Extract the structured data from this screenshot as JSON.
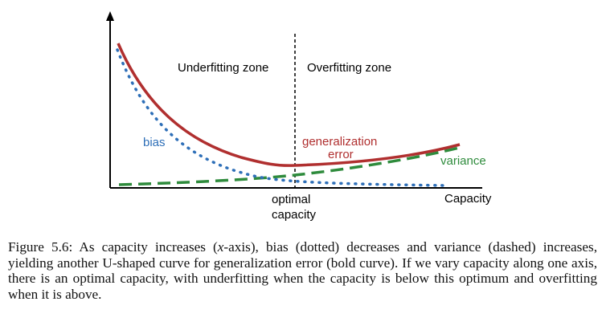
{
  "figure": {
    "labels": {
      "underfitting_zone": "Underfitting zone",
      "overfitting_zone": "Overfitting zone",
      "bias": "bias",
      "generalization_line1": "generalization",
      "generalization_line2": "error",
      "variance": "variance",
      "optimal_line1": "optimal",
      "optimal_line2": "capacity",
      "x_axis": "Capacity"
    },
    "colors": {
      "axis": "#000000",
      "bias": "#2e6fb8",
      "generalization_error": "#b02f2f",
      "variance": "#2e8b3c",
      "divider": "#000000"
    }
  },
  "caption": {
    "label": "Figure 5.6:",
    "text_part1": "As capacity increases (",
    "x_var": "x",
    "text_part2": "-axis), bias (dotted) decreases and variance (dashed) increases, yielding another U-shaped curve for generalization error (bold curve). If we vary capacity along one axis, there is an optimal capacity, with underfitting when the capacity is below this optimum and overfitting when it is above."
  }
}
